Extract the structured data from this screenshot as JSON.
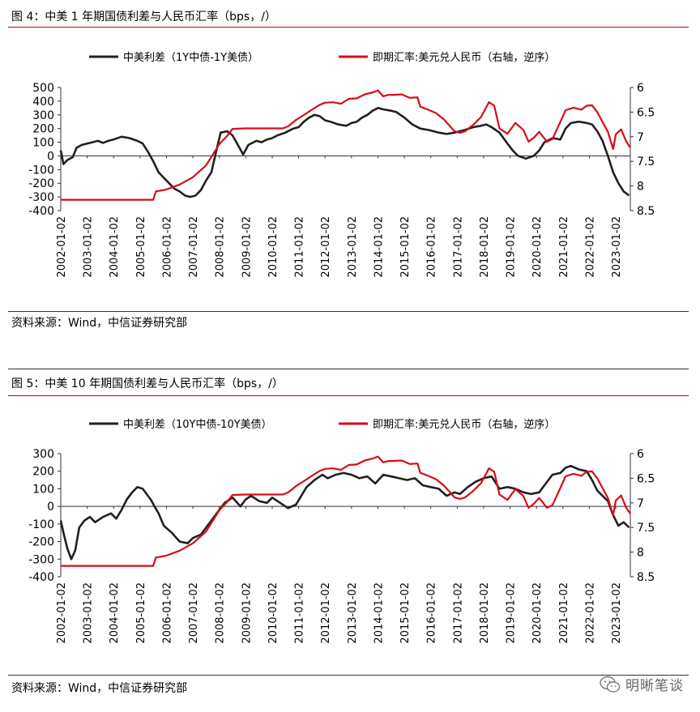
{
  "watermark": {
    "text": "明晰笔谈",
    "icon": "wechat-icon"
  },
  "figures": [
    {
      "title": "图 4：中美 1 年期国债利差与人民币汇率（bps，/）",
      "source": "资料来源：Wind，中信证券研究部",
      "legend": [
        "中美利差（1Y中债-1Y美债）",
        "即期汇率:美元兑人民币（右轴，逆序）"
      ],
      "colors": {
        "spread": "#231f20",
        "fx": "#d80c18"
      }
    },
    {
      "title": "图 5：中美 10 年期国债利差与人民币汇率（bps，/）",
      "source": "资料来源：Wind，中信证券研究部",
      "legend": [
        "中美利差（10Y中债-10Y美债）",
        "即期汇率:美元兑人民币（右轴，逆序）"
      ],
      "colors": {
        "spread": "#231f20",
        "fx": "#d80c18"
      }
    }
  ],
  "chart_data": [
    {
      "type": "line",
      "title": "图 4：中美 1 年期国债利差与人民币汇率（bps，/）",
      "x_tick_labels": [
        "2002-01-02",
        "2003-01-02",
        "2004-01-02",
        "2005-01-02",
        "2006-01-02",
        "2007-01-02",
        "2008-01-02",
        "2009-01-02",
        "2010-01-02",
        "2011-01-02",
        "2012-01-02",
        "2013-01-02",
        "2014-01-02",
        "2015-01-02",
        "2016-01-02",
        "2017-01-02",
        "2018-01-02",
        "2019-01-02",
        "2020-01-02",
        "2021-01-02",
        "2022-01-02",
        "2023-01-02"
      ],
      "x_range": [
        2002.0,
        2023.55
      ],
      "y_left": {
        "ticks": [
          500,
          400,
          300,
          200,
          100,
          0,
          -100,
          -200,
          -300,
          -400
        ],
        "range": [
          -400,
          500
        ]
      },
      "y_right": {
        "ticks": [
          6,
          6.5,
          7,
          7.5,
          8,
          8.5
        ],
        "range": [
          6,
          8.5
        ],
        "inverted": true
      },
      "grid": false,
      "legend_position": "top",
      "series": [
        {
          "name": "中美利差（1Y中债-1Y美债）",
          "axis": "left",
          "color": "#231f20",
          "x": [
            2002.0,
            2002.1,
            2002.25,
            2002.35,
            2002.45,
            2002.6,
            2002.8,
            2003.0,
            2003.2,
            2003.4,
            2003.6,
            2003.8,
            2004.0,
            2004.3,
            2004.6,
            2004.9,
            2005.1,
            2005.3,
            2005.5,
            2005.7,
            2005.9,
            2006.1,
            2006.3,
            2006.5,
            2006.7,
            2006.9,
            2007.1,
            2007.3,
            2007.5,
            2007.7,
            2007.9,
            2008.05,
            2008.3,
            2008.5,
            2008.7,
            2008.9,
            2009.1,
            2009.4,
            2009.6,
            2009.8,
            2010.0,
            2010.2,
            2010.5,
            2010.8,
            2011.0,
            2011.2,
            2011.4,
            2011.6,
            2011.8,
            2012.0,
            2012.2,
            2012.5,
            2012.8,
            2013.0,
            2013.2,
            2013.4,
            2013.6,
            2013.8,
            2014.0,
            2014.2,
            2014.5,
            2014.7,
            2015.0,
            2015.3,
            2015.6,
            2015.9,
            2016.1,
            2016.3,
            2016.6,
            2016.9,
            2017.1,
            2017.3,
            2017.6,
            2017.9,
            2018.1,
            2018.3,
            2018.6,
            2018.9,
            2019.1,
            2019.3,
            2019.6,
            2019.9,
            2020.1,
            2020.3,
            2020.6,
            2020.9,
            2021.1,
            2021.3,
            2021.6,
            2021.9,
            2022.1,
            2022.3,
            2022.5,
            2022.7,
            2022.9,
            2023.1,
            2023.3,
            2023.5
          ],
          "y": [
            40,
            -60,
            -30,
            -20,
            -10,
            60,
            80,
            90,
            100,
            110,
            95,
            110,
            120,
            140,
            130,
            110,
            90,
            30,
            -40,
            -120,
            -160,
            -200,
            -240,
            -260,
            -290,
            -300,
            -290,
            -250,
            -180,
            -120,
            50,
            170,
            180,
            150,
            80,
            10,
            80,
            110,
            100,
            120,
            130,
            150,
            170,
            200,
            210,
            250,
            280,
            300,
            290,
            260,
            250,
            230,
            220,
            240,
            250,
            280,
            300,
            330,
            350,
            340,
            330,
            320,
            280,
            230,
            200,
            190,
            180,
            170,
            160,
            170,
            180,
            190,
            210,
            220,
            230,
            210,
            170,
            90,
            40,
            0,
            -20,
            0,
            40,
            100,
            130,
            120,
            200,
            240,
            250,
            240,
            230,
            180,
            110,
            0,
            -120,
            -200,
            -260,
            -290
          ]
        },
        {
          "name": "即期汇率:美元兑人民币（右轴，逆序）",
          "axis": "right",
          "color": "#d80c18",
          "x": [
            2002.0,
            2005.5,
            2005.6,
            2006.0,
            2006.5,
            2007.0,
            2007.5,
            2008.0,
            2008.3,
            2008.5,
            2009.0,
            2009.5,
            2010.0,
            2010.4,
            2010.6,
            2010.9,
            2011.2,
            2011.5,
            2011.8,
            2012.0,
            2012.3,
            2012.6,
            2012.9,
            2013.2,
            2013.5,
            2013.8,
            2014.0,
            2014.2,
            2014.4,
            2014.6,
            2014.9,
            2015.2,
            2015.5,
            2015.6,
            2015.9,
            2016.2,
            2016.5,
            2016.9,
            2017.1,
            2017.3,
            2017.6,
            2017.9,
            2018.2,
            2018.4,
            2018.6,
            2018.9,
            2019.2,
            2019.5,
            2019.7,
            2019.9,
            2020.1,
            2020.4,
            2020.6,
            2020.9,
            2021.1,
            2021.4,
            2021.7,
            2021.9,
            2022.1,
            2022.3,
            2022.5,
            2022.7,
            2022.9,
            2023.0,
            2023.2,
            2023.4,
            2023.55
          ],
          "y": [
            8.28,
            8.28,
            8.11,
            8.07,
            7.97,
            7.82,
            7.58,
            7.15,
            6.98,
            6.84,
            6.83,
            6.83,
            6.83,
            6.83,
            6.79,
            6.66,
            6.56,
            6.45,
            6.35,
            6.31,
            6.3,
            6.33,
            6.23,
            6.22,
            6.14,
            6.1,
            6.06,
            6.18,
            6.15,
            6.15,
            6.14,
            6.21,
            6.2,
            6.39,
            6.45,
            6.52,
            6.65,
            6.89,
            6.92,
            6.89,
            6.76,
            6.6,
            6.3,
            6.37,
            6.83,
            6.94,
            6.72,
            6.86,
            7.1,
            7.02,
            6.9,
            7.1,
            7.05,
            6.7,
            6.46,
            6.41,
            6.45,
            6.37,
            6.36,
            6.5,
            6.7,
            6.9,
            7.25,
            6.95,
            6.85,
            7.1,
            7.22
          ]
        }
      ]
    },
    {
      "type": "line",
      "title": "图 5：中美 10 年期国债利差与人民币汇率（bps，/）",
      "x_tick_labels": [
        "2002-01-02",
        "2003-01-02",
        "2004-01-02",
        "2005-01-02",
        "2006-01-02",
        "2007-01-02",
        "2008-01-02",
        "2009-01-02",
        "2010-01-02",
        "2011-01-02",
        "2012-01-02",
        "2013-01-02",
        "2014-01-02",
        "2015-01-02",
        "2016-01-02",
        "2017-01-02",
        "2018-01-02",
        "2019-01-02",
        "2020-01-02",
        "2021-01-02",
        "2022-01-02",
        "2023-01-02"
      ],
      "x_range": [
        2002.0,
        2023.55
      ],
      "y_left": {
        "ticks": [
          300,
          200,
          100,
          0,
          -100,
          -200,
          -300,
          -400
        ],
        "range": [
          -400,
          300
        ]
      },
      "y_right": {
        "ticks": [
          6,
          6.5,
          7,
          7.5,
          8,
          8.5
        ],
        "range": [
          6,
          8.5
        ],
        "inverted": true
      },
      "grid": false,
      "legend_position": "top",
      "series": [
        {
          "name": "中美利差（10Y中债-10Y美债）",
          "axis": "left",
          "color": "#231f20",
          "x": [
            2002.0,
            2002.1,
            2002.25,
            2002.4,
            2002.55,
            2002.7,
            2002.9,
            2003.1,
            2003.3,
            2003.6,
            2003.9,
            2004.1,
            2004.3,
            2004.5,
            2004.7,
            2004.9,
            2005.1,
            2005.4,
            2005.7,
            2005.9,
            2006.2,
            2006.5,
            2006.8,
            2007.0,
            2007.3,
            2007.6,
            2007.9,
            2008.2,
            2008.5,
            2008.8,
            2009.0,
            2009.2,
            2009.5,
            2009.8,
            2010.0,
            2010.3,
            2010.6,
            2010.9,
            2011.1,
            2011.3,
            2011.6,
            2011.9,
            2012.1,
            2012.4,
            2012.7,
            2013.0,
            2013.3,
            2013.6,
            2013.9,
            2014.2,
            2014.5,
            2014.8,
            2015.1,
            2015.4,
            2015.7,
            2016.0,
            2016.3,
            2016.6,
            2016.9,
            2017.1,
            2017.4,
            2017.7,
            2018.0,
            2018.3,
            2018.6,
            2018.9,
            2019.2,
            2019.5,
            2019.8,
            2020.1,
            2020.3,
            2020.6,
            2020.9,
            2021.1,
            2021.3,
            2021.6,
            2021.9,
            2022.1,
            2022.3,
            2022.5,
            2022.7,
            2022.9,
            2023.1,
            2023.3,
            2023.5
          ],
          "y": [
            -80,
            -150,
            -240,
            -300,
            -250,
            -120,
            -80,
            -60,
            -90,
            -60,
            -40,
            -70,
            -20,
            40,
            80,
            110,
            100,
            40,
            -40,
            -110,
            -150,
            -200,
            -210,
            -180,
            -160,
            -100,
            -40,
            20,
            50,
            0,
            40,
            60,
            30,
            20,
            50,
            20,
            -10,
            10,
            60,
            110,
            150,
            180,
            160,
            180,
            190,
            180,
            160,
            170,
            130,
            180,
            170,
            160,
            150,
            160,
            120,
            110,
            100,
            60,
            80,
            70,
            110,
            140,
            160,
            170,
            100,
            110,
            100,
            80,
            70,
            80,
            120,
            180,
            190,
            220,
            230,
            210,
            200,
            150,
            90,
            60,
            30,
            -50,
            -110,
            -90,
            -120
          ]
        },
        {
          "name": "即期汇率:美元兑人民币（右轴，逆序）",
          "axis": "right",
          "color": "#d80c18",
          "x": [
            2002.0,
            2005.5,
            2005.6,
            2006.0,
            2006.5,
            2007.0,
            2007.5,
            2008.0,
            2008.3,
            2008.5,
            2009.0,
            2009.5,
            2010.0,
            2010.4,
            2010.6,
            2010.9,
            2011.2,
            2011.5,
            2011.8,
            2012.0,
            2012.3,
            2012.6,
            2012.9,
            2013.2,
            2013.5,
            2013.8,
            2014.0,
            2014.2,
            2014.4,
            2014.6,
            2014.9,
            2015.2,
            2015.5,
            2015.6,
            2015.9,
            2016.2,
            2016.5,
            2016.9,
            2017.1,
            2017.3,
            2017.6,
            2017.9,
            2018.2,
            2018.4,
            2018.6,
            2018.9,
            2019.2,
            2019.5,
            2019.7,
            2019.9,
            2020.1,
            2020.4,
            2020.6,
            2020.9,
            2021.1,
            2021.4,
            2021.7,
            2021.9,
            2022.1,
            2022.3,
            2022.5,
            2022.7,
            2022.9,
            2023.0,
            2023.2,
            2023.4,
            2023.55
          ],
          "y": [
            8.28,
            8.28,
            8.11,
            8.07,
            7.97,
            7.82,
            7.58,
            7.15,
            6.98,
            6.84,
            6.83,
            6.83,
            6.83,
            6.83,
            6.79,
            6.66,
            6.56,
            6.45,
            6.35,
            6.31,
            6.3,
            6.33,
            6.23,
            6.22,
            6.14,
            6.1,
            6.06,
            6.18,
            6.15,
            6.15,
            6.14,
            6.21,
            6.2,
            6.39,
            6.45,
            6.52,
            6.65,
            6.89,
            6.92,
            6.89,
            6.76,
            6.6,
            6.3,
            6.37,
            6.83,
            6.94,
            6.72,
            6.86,
            7.1,
            7.02,
            6.9,
            7.1,
            7.05,
            6.7,
            6.46,
            6.41,
            6.45,
            6.37,
            6.36,
            6.5,
            6.7,
            6.9,
            7.25,
            6.95,
            6.85,
            7.1,
            7.22
          ]
        }
      ]
    }
  ]
}
